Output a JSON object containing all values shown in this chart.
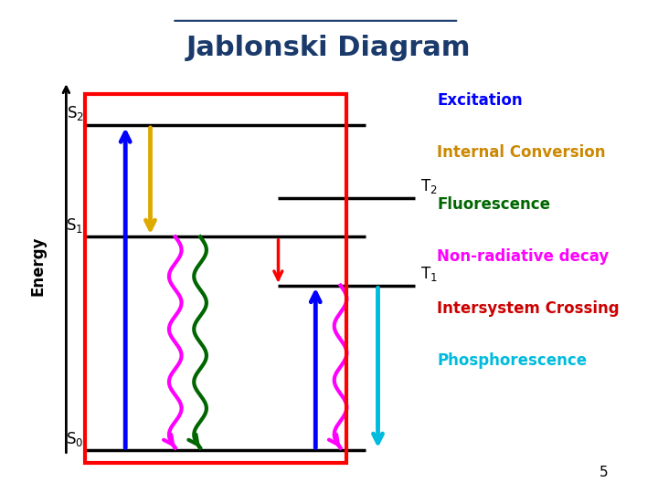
{
  "title": "Jablonski Diagram",
  "title_color": "#1a3a6b",
  "title_fontsize": 22,
  "background_color": "#ffffff",
  "energy_label": "Energy",
  "page_number": "5",
  "levels": {
    "S0": 0.08,
    "S1": 0.52,
    "S2": 0.75,
    "T1": 0.42,
    "T2": 0.6
  },
  "level_xranges": {
    "S0": [
      0.13,
      0.58
    ],
    "S1": [
      0.13,
      0.58
    ],
    "S2": [
      0.13,
      0.58
    ],
    "T1": [
      0.44,
      0.66
    ],
    "T2": [
      0.44,
      0.66
    ]
  },
  "legend_items": [
    {
      "text": "Excitation",
      "color": "#0000ff"
    },
    {
      "text": "Internal Conversion",
      "color": "#cc8800"
    },
    {
      "text": "Fluorescence",
      "color": "#006600"
    },
    {
      "text": "Non-radiative decay",
      "color": "#ff00ff"
    },
    {
      "text": "Intersystem Crossing",
      "color": "#cc0000"
    },
    {
      "text": "Phosphorescence",
      "color": "#00bbdd"
    }
  ]
}
